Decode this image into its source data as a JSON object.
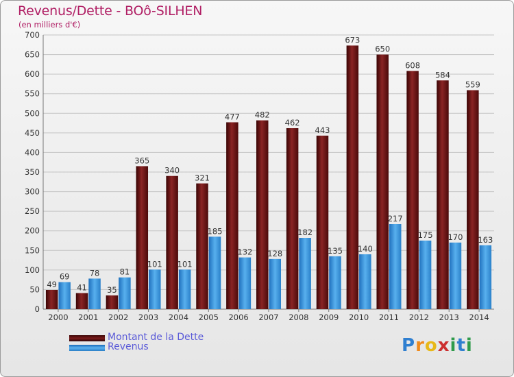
{
  "header": {
    "title": "Revenus/Dette - BOô-SILHEN",
    "subtitle": "(en milliers d'€)"
  },
  "logo": {
    "text": "Proxiti",
    "letters": [
      "P",
      "r",
      "o",
      "x",
      "i",
      "t",
      "i"
    ],
    "colors": [
      "#2f7fd0",
      "#f08a1c",
      "#e8b818",
      "#cc2f2f",
      "#2f9b4b",
      "#2f7fd0",
      "#2f9b4b"
    ]
  },
  "chart_data": {
    "type": "bar",
    "title": "Revenus/Dette - BOô-SILHEN",
    "ylabel": "(en milliers d'€)",
    "xlabel": "",
    "categories": [
      "2000",
      "2001",
      "2002",
      "2003",
      "2004",
      "2005",
      "2006",
      "2007",
      "2008",
      "2009",
      "2010",
      "2011",
      "2012",
      "2013",
      "2014"
    ],
    "series": [
      {
        "name": "Montant de la Dette",
        "color": "#7b1a1a",
        "values": [
          49,
          41,
          35,
          365,
          340,
          321,
          477,
          482,
          462,
          443,
          673,
          650,
          608,
          584,
          559
        ]
      },
      {
        "name": "Revenus",
        "color": "#3c97de",
        "values": [
          69,
          78,
          81,
          101,
          101,
          185,
          132,
          128,
          182,
          135,
          140,
          217,
          175,
          170,
          163
        ]
      }
    ],
    "ylim": [
      0,
      700
    ],
    "yticks": [
      0,
      50,
      100,
      150,
      200,
      250,
      300,
      350,
      400,
      450,
      500,
      550,
      600,
      650,
      700
    ],
    "grid": true,
    "legend": "bottom-left"
  }
}
